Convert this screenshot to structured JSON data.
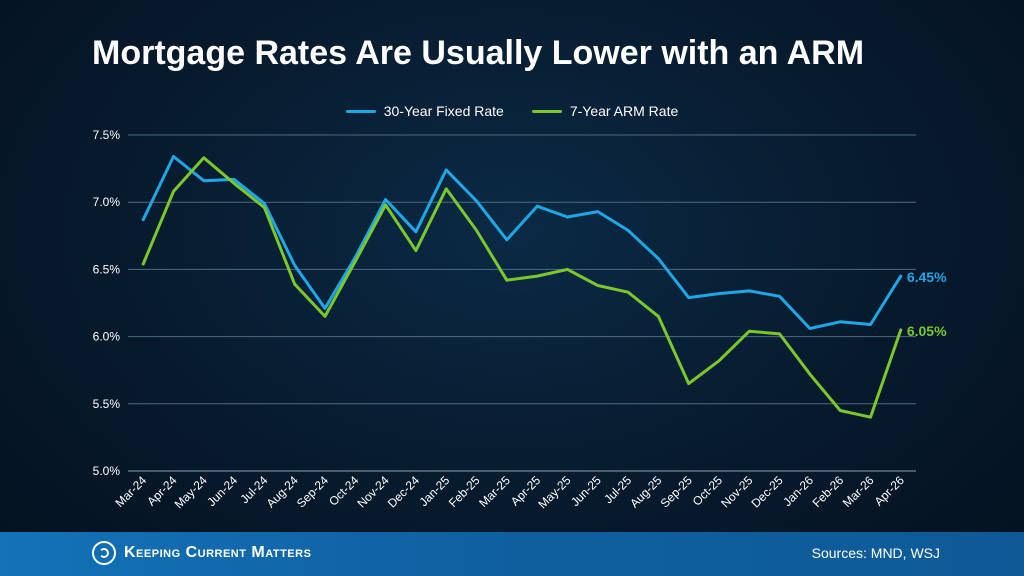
{
  "colors": {
    "fixed": "#1ea7e6",
    "arm": "#7ac82c",
    "grid": "#4e6a80",
    "axis_text": "#ffffff"
  },
  "footer": {
    "logo_text": "Keeping Current Matters",
    "logo_icon": "kcm-swirl-icon",
    "sources": "Sources: MND, WSJ"
  },
  "chart_data": {
    "type": "line",
    "title": "Mortgage Rates Are Usually Lower with an ARM",
    "xlabel": "",
    "ylabel": "",
    "ylim": [
      5.0,
      7.5
    ],
    "yticks": [
      "5.0%",
      "5.5%",
      "6.0%",
      "6.5%",
      "7.0%",
      "7.5%"
    ],
    "grid": true,
    "legend_position": "top-center",
    "categories": [
      "Mar-24",
      "Apr-24",
      "May-24",
      "Jun-24",
      "Jul-24",
      "Aug-24",
      "Sep-24",
      "Oct-24",
      "Nov-24",
      "Dec-24",
      "Jan-25",
      "Feb-25",
      "Mar-25",
      "Apr-25",
      "May-25",
      "Jun-25",
      "Jul-25",
      "Aug-25",
      "Sep-25",
      "Oct-25",
      "Nov-25",
      "Dec-25",
      "Jan-26",
      "Feb-26",
      "Mar-26",
      "Apr-26"
    ],
    "series": [
      {
        "name": "30-Year Fixed Rate",
        "values": [
          6.87,
          7.34,
          7.16,
          7.17,
          6.99,
          6.53,
          6.21,
          6.59,
          7.02,
          6.78,
          7.24,
          7.01,
          6.72,
          6.97,
          6.89,
          6.93,
          6.79,
          6.58,
          6.29,
          6.32,
          6.34,
          6.3,
          6.06,
          6.11,
          6.09,
          6.45
        ],
        "end_label": "6.45%"
      },
      {
        "name": "7-Year ARM Rate",
        "values": [
          6.54,
          7.08,
          7.33,
          7.14,
          6.96,
          6.39,
          6.15,
          6.56,
          6.98,
          6.64,
          7.1,
          6.79,
          6.42,
          6.45,
          6.5,
          6.38,
          6.33,
          6.15,
          5.65,
          5.82,
          6.04,
          6.02,
          5.72,
          5.45,
          5.4,
          6.05
        ],
        "end_label": "6.05%"
      }
    ]
  }
}
